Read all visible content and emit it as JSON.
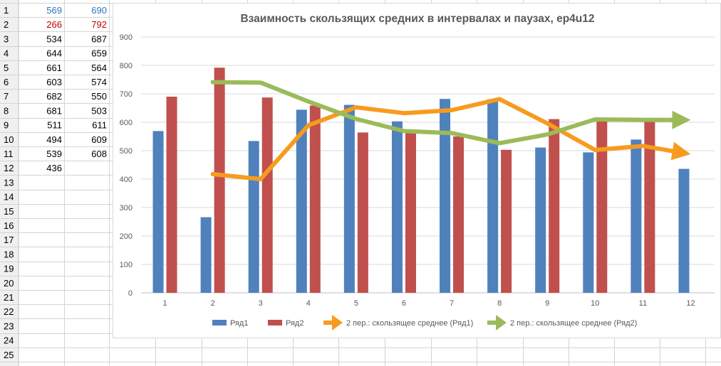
{
  "sheet": {
    "row_numbers": [
      "1",
      "2",
      "3",
      "4",
      "5",
      "6",
      "7",
      "8",
      "9",
      "10",
      "11",
      "12",
      "13",
      "14",
      "15",
      "16",
      "17",
      "18",
      "19",
      "20",
      "21",
      "22",
      "23",
      "24",
      "25"
    ],
    "rows": [
      {
        "a": "569",
        "b": "690"
      },
      {
        "a": "266",
        "b": "792"
      },
      {
        "a": "534",
        "b": "687"
      },
      {
        "a": "644",
        "b": "659"
      },
      {
        "a": "661",
        "b": "564"
      },
      {
        "a": "603",
        "b": "574"
      },
      {
        "a": "682",
        "b": "550"
      },
      {
        "a": "681",
        "b": "503"
      },
      {
        "a": "511",
        "b": "611"
      },
      {
        "a": "494",
        "b": "609"
      },
      {
        "a": "539",
        "b": "608"
      },
      {
        "a": "436",
        "b": ""
      }
    ],
    "colors": {
      "row1": "#2e75b6",
      "row2": "#c00000",
      "normal": "#000000"
    }
  },
  "chart_data": {
    "type": "bar",
    "title": "Взаимность скользящих средних в интервалах и паузах, ep4u12",
    "categories": [
      "1",
      "2",
      "3",
      "4",
      "5",
      "6",
      "7",
      "8",
      "9",
      "10",
      "11",
      "12"
    ],
    "ylim": [
      0,
      900
    ],
    "yticks": [
      "0",
      "100",
      "200",
      "300",
      "400",
      "500",
      "600",
      "700",
      "800",
      "900"
    ],
    "grid": true,
    "legend_position": "bottom",
    "series": [
      {
        "name": "Ряд1",
        "kind": "bar",
        "color": "#4f81bd",
        "values": [
          569,
          266,
          534,
          644,
          661,
          603,
          682,
          681,
          511,
          494,
          539,
          436
        ]
      },
      {
        "name": "Ряд2",
        "kind": "bar",
        "color": "#c0504d",
        "values": [
          690,
          792,
          687,
          659,
          564,
          574,
          550,
          503,
          611,
          609,
          608,
          null
        ]
      }
    ],
    "trendlines": [
      {
        "name": "2 пер.: скользящее среднее (Ряд1)",
        "color": "#f79b1e",
        "values": [
          null,
          417.5,
          400,
          589,
          652.5,
          632,
          642.5,
          681.5,
          596,
          502.5,
          516.5,
          487.5
        ]
      },
      {
        "name": "2 пер.: скользящее среднее (Ряд2)",
        "color": "#9bbb59",
        "values": [
          null,
          741,
          739.5,
          673,
          611.5,
          569,
          562,
          526.5,
          557,
          610,
          608.5,
          608
        ]
      }
    ]
  }
}
